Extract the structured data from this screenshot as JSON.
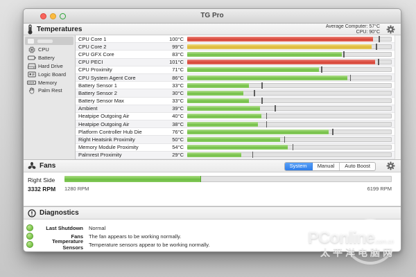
{
  "window": {
    "title": "TG Pro"
  },
  "temperatures": {
    "header": "Temperatures",
    "summary": {
      "average_label": "Average Computer:",
      "average_value": "57°C",
      "cpu_label": "CPU:",
      "cpu_value": "90°C"
    },
    "sidebar": [
      {
        "label": "CPU",
        "icon": "cpu-chip-icon"
      },
      {
        "label": "Battery",
        "icon": "battery-icon"
      },
      {
        "label": "Hard Drive",
        "icon": "hard-drive-icon"
      },
      {
        "label": "Logic Board",
        "icon": "logic-board-icon"
      },
      {
        "label": "Memory",
        "icon": "memory-icon"
      },
      {
        "label": "Palm Rest",
        "icon": "palm-rest-icon"
      }
    ],
    "scale_max_c": 110,
    "sensors": [
      {
        "name": "CPU Core 1",
        "value": 100,
        "display": "100°C",
        "color": "red",
        "tick": 103
      },
      {
        "name": "CPU Core 2",
        "value": 99,
        "display": "99°C",
        "color": "yellow",
        "tick": 101.5
      },
      {
        "name": "CPU GFX Core",
        "value": 83,
        "display": "83°C",
        "color": "green",
        "tick": 84
      },
      {
        "name": "CPU PECI",
        "value": 101,
        "display": "101°C",
        "color": "red",
        "tick": 102.5
      },
      {
        "name": "CPU Proximity",
        "value": 71,
        "display": "71°C",
        "color": "green",
        "tick": 72
      },
      {
        "name": "CPU System Agent Core",
        "value": 86,
        "display": "86°C",
        "color": "green",
        "tick": 87.5
      },
      {
        "name": "Battery Sensor 1",
        "value": 33,
        "display": "33°C",
        "color": "green",
        "tick": 40
      },
      {
        "name": "Battery Sensor 2",
        "value": 30,
        "display": "30°C",
        "color": "green",
        "tick": 36
      },
      {
        "name": "Battery Sensor Max",
        "value": 33,
        "display": "33°C",
        "color": "green",
        "tick": 40
      },
      {
        "name": "Ambient",
        "value": 39,
        "display": "39°C",
        "color": "green",
        "tick": 47
      },
      {
        "name": "Heatpipe Outgoing Air",
        "value": 40,
        "display": "40°C",
        "color": "green",
        "tick": 42.5
      },
      {
        "name": "Heatpipe Outgoing Air",
        "value": 38,
        "display": "38°C",
        "color": "green",
        "tick": 42.5
      },
      {
        "name": "Platform Controller Hub Die",
        "value": 76,
        "display": "76°C",
        "color": "green",
        "tick": 78
      },
      {
        "name": "Right Heatsink Proximity",
        "value": 50,
        "display": "50°C",
        "color": "green",
        "tick": 52
      },
      {
        "name": "Memory Module Proximity",
        "value": 54,
        "display": "54°C",
        "color": "green",
        "tick": 56.5
      },
      {
        "name": "Palmrest Proximity",
        "value": 29,
        "display": "29°C",
        "color": "green",
        "tick": 35
      }
    ]
  },
  "fans": {
    "header": "Fans",
    "modes": [
      "System",
      "Manual",
      "Auto Boost"
    ],
    "selected_mode": "System",
    "fan": {
      "name": "Right Side",
      "current_rpm": "3332 RPM",
      "min_rpm": "1280 RPM",
      "max_rpm": "6199 RPM",
      "fill_pct": 41.7
    }
  },
  "diagnostics": {
    "header": "Diagnostics",
    "items": [
      {
        "label": "Last Shutdown",
        "status": "Normal"
      },
      {
        "label": "Fans",
        "status": "The fan appears to be working normally."
      },
      {
        "label": "Temperature Sensors",
        "status": "Temperature sensors appear to be working normally."
      }
    ]
  },
  "watermark": {
    "brand": "PConline",
    "suffix": ".com.cn",
    "subtitle": "太平洋电脑网"
  },
  "colors": {
    "bar_green": "#7cc74e",
    "bar_yellow": "#ddb835",
    "bar_red": "#d64335",
    "segment_selected_blue": "#2e7de9",
    "status_dot_green": "#84cb52"
  }
}
